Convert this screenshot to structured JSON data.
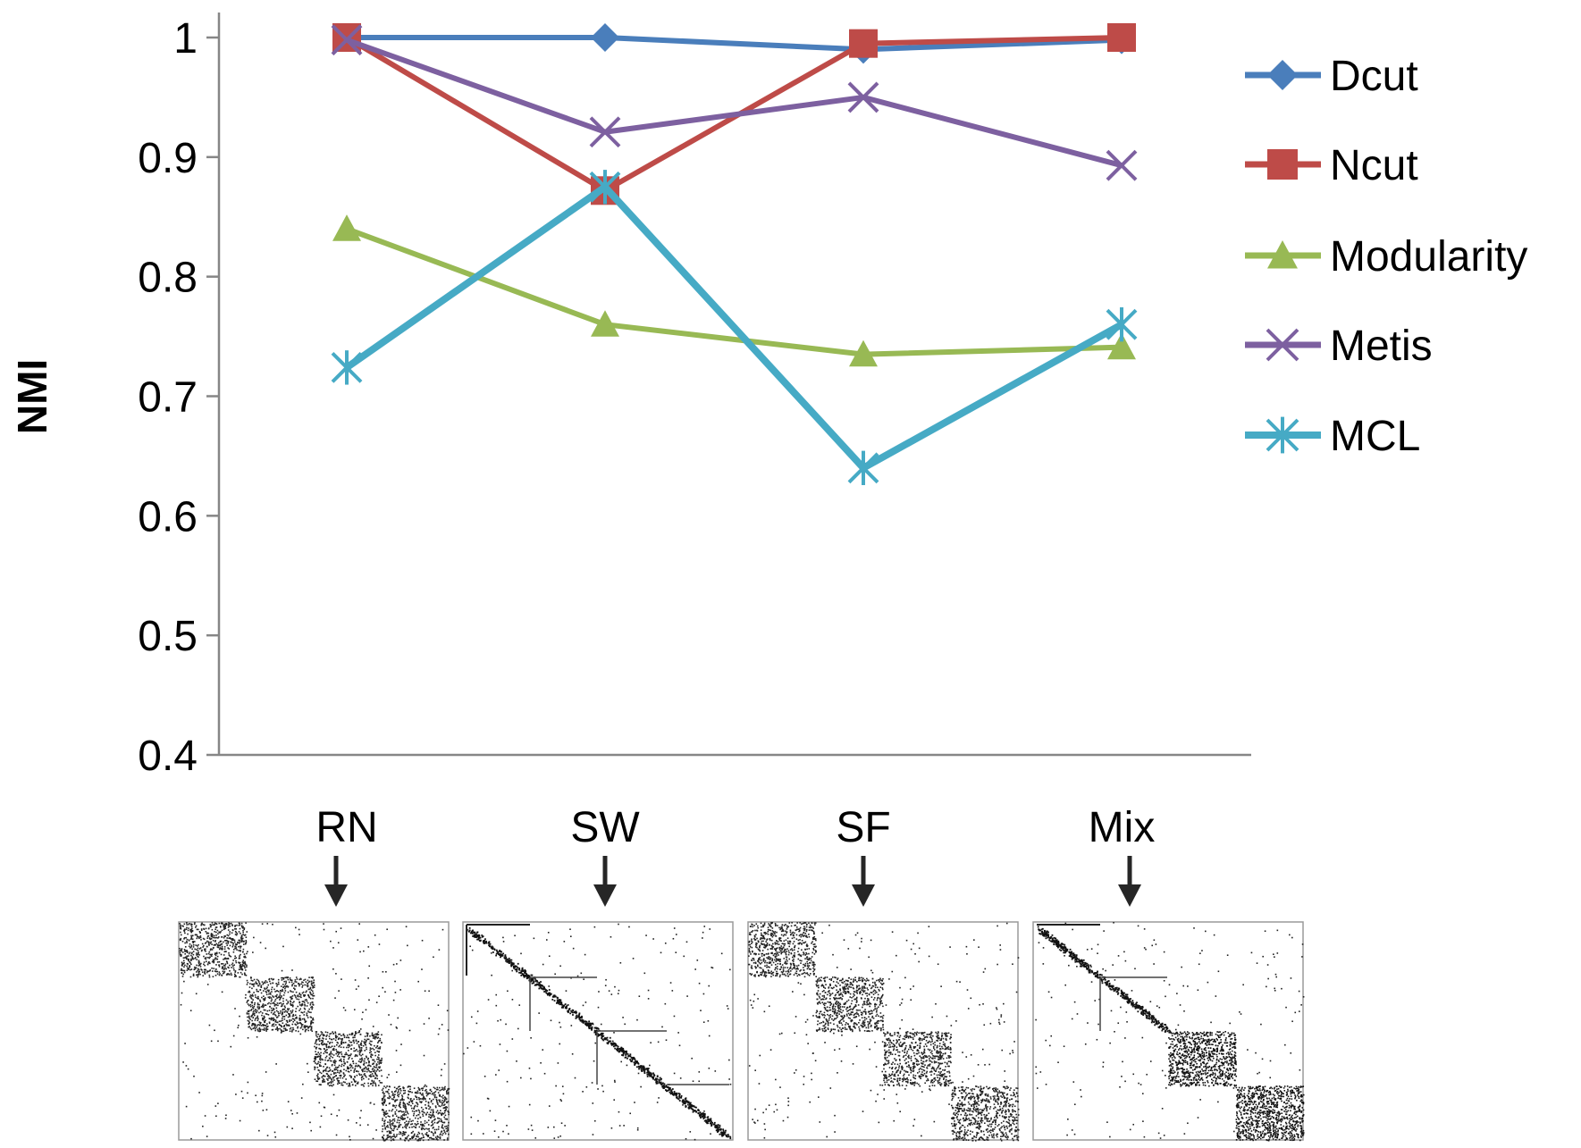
{
  "chart_data": {
    "type": "line",
    "title": "",
    "xlabel": "",
    "ylabel": "NMI",
    "ylim": [
      0.4,
      1.0
    ],
    "yticks": [
      "0.4",
      "0.5",
      "0.6",
      "0.7",
      "0.8",
      "0.9",
      "1"
    ],
    "categories": [
      "RN",
      "SW",
      "SF",
      "Mix"
    ],
    "legend_position": "right",
    "series": [
      {
        "name": "Dcut",
        "color": "#4a7ebb",
        "marker": "diamond",
        "values": [
          1.0,
          1.0,
          0.99,
          0.998
        ]
      },
      {
        "name": "Ncut",
        "color": "#be4b48",
        "marker": "square",
        "values": [
          1.0,
          0.872,
          0.995,
          1.0
        ]
      },
      {
        "name": "Modularity",
        "color": "#98b954",
        "marker": "triangle",
        "values": [
          0.84,
          0.76,
          0.735,
          0.741
        ]
      },
      {
        "name": "Metis",
        "color": "#7d60a0",
        "marker": "x",
        "values": [
          0.998,
          0.921,
          0.95,
          0.893
        ]
      },
      {
        "name": "MCL",
        "color": "#46aac5",
        "marker": "asterisk",
        "values": [
          0.724,
          0.875,
          0.64,
          0.76
        ]
      }
    ],
    "matrix_panels": [
      {
        "label": "RN",
        "pattern": "blocks"
      },
      {
        "label": "SW",
        "pattern": "diagonal"
      },
      {
        "label": "SF",
        "pattern": "blocks"
      },
      {
        "label": "Mix",
        "pattern": "mixed"
      }
    ]
  }
}
